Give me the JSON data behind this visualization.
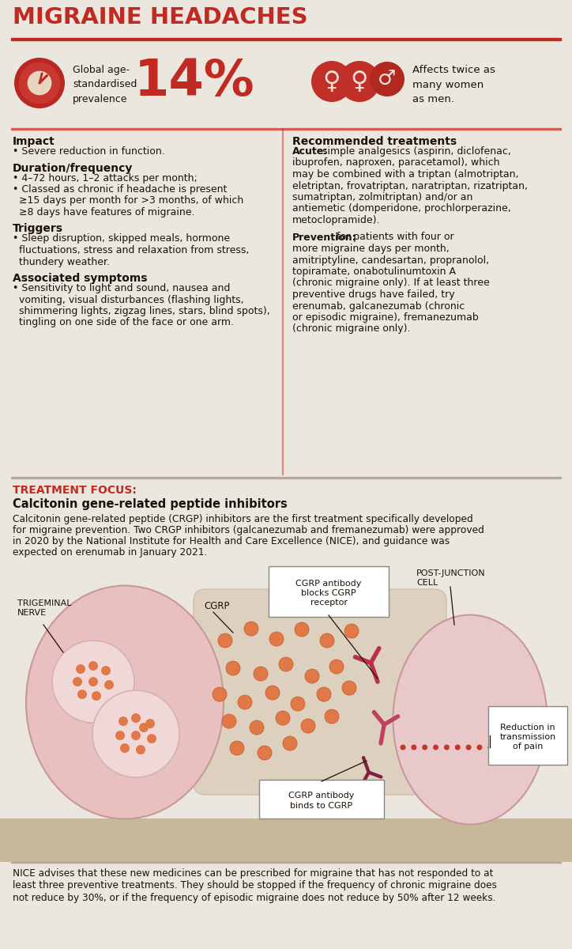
{
  "bg_color": "#ece7de",
  "red_color": "#c02a22",
  "title": "MIGRAINE HEADACHES",
  "prevalence": "14%",
  "prevalence_label": "Global age-\nstandardised\nprevalence",
  "affects_text": "Affects twice as\nmany women\nas men.",
  "impact_title": "Impact",
  "impact_text": "• Severe reduction in function.",
  "duration_title": "Duration/frequency",
  "duration_lines": [
    "• 4–72 hours, 1–2 attacks per month;",
    "• Classed as chronic if headache is present",
    "  ≥15 days per month for >3 months, of which",
    "  ≥8 days have features of migraine."
  ],
  "triggers_title": "Triggers",
  "triggers_lines": [
    "• Sleep disruption, skipped meals, hormone",
    "  fluctuations, stress and relaxation from stress,",
    "  thundery weather."
  ],
  "symptoms_title": "Associated symptoms",
  "symptoms_lines": [
    "• Sensitivity to light and sound, nausea and",
    "  vomiting, visual disturbances (flashing lights,",
    "  shimmering lights, zigzag lines, stars, blind spots),",
    "  tingling on one side of the face or one arm."
  ],
  "rec_title": "Recommended treatments",
  "acute_label": "Acute:",
  "acute_rest_lines": [
    " simple analgesics (aspirin, diclofenac,",
    "ibuprofen, naproxen, paracetamol), which",
    "may be combined with a triptan (almotriptan,",
    "eletriptan, frovatriptan, naratriptan, rizatriptan,",
    "sumatriptan, zolmitriptan) and/or an",
    "antiemetic (domperidone, prochlorperazine,",
    "metoclopramide)."
  ],
  "prevention_label": "Prevention:",
  "prevention_rest_lines": [
    " for patients with four or",
    "more migraine days per month,",
    "amitriptyline, candesartan, propranolol,",
    "topiramate, onabotulinumtoxin A",
    "(chronic migraine only). If at least three",
    "preventive drugs have failed, try",
    "erenumab, galcanezumab (chronic",
    "or episodic migraine), fremanezumab",
    "(chronic migraine only)."
  ],
  "treatment_focus_label": "TREATMENT FOCUS:",
  "treatment_focus_subtitle": "Calcitonin gene-related peptide inhibitors",
  "treatment_focus_lines": [
    "Calcitonin gene-related peptide (CRGP) inhibitors are the first treatment specifically developed",
    "for migraine prevention. Two CRGP inhibitors (galcanezumab and fremanezumab) were approved",
    "in 2020 by the National Institute for Health and Care Excellence (NICE), and guidance was",
    "expected on erenumab in January 2021."
  ],
  "label_trigeminal": "TRIGEMINAL\nNERVE",
  "label_cgrp": "CGRP",
  "label_antibody_blocks": "CGRP antibody\nblocks CGRP\nreceptor",
  "label_post_junction": "POST-JUNCTION\nCELL",
  "label_reduction": "Reduction in\ntransmission\nof pain",
  "label_antibody_binds": "CGRP antibody\nbinds to CGRP",
  "footer_lines": [
    "NICE advises that these new medicines can be prescribed for migraine that has not responded to at",
    "least three preventive treatments. They should be stopped if the frequency of chronic migraine does",
    "not reduce by 30%, or if the frequency of episodic migraine does not reduce by 50% after 12 weeks."
  ],
  "orange_dot": "#e07848",
  "cell_pink": "#e8c0c0",
  "cell_edge": "#c89898",
  "nuc_pink": "#f0d8d8",
  "nuc_edge": "#d8b0b0",
  "receptor_color": "#b83050",
  "antibody_color": "#902040",
  "dot_arrow_color": "#c0392b",
  "synapse_bg": "#d8c8b4",
  "right_cell_color": "#e8c8c8",
  "text_color": "#1a1208",
  "divider_color": "#c0392b",
  "section_divider": "#b8a898"
}
